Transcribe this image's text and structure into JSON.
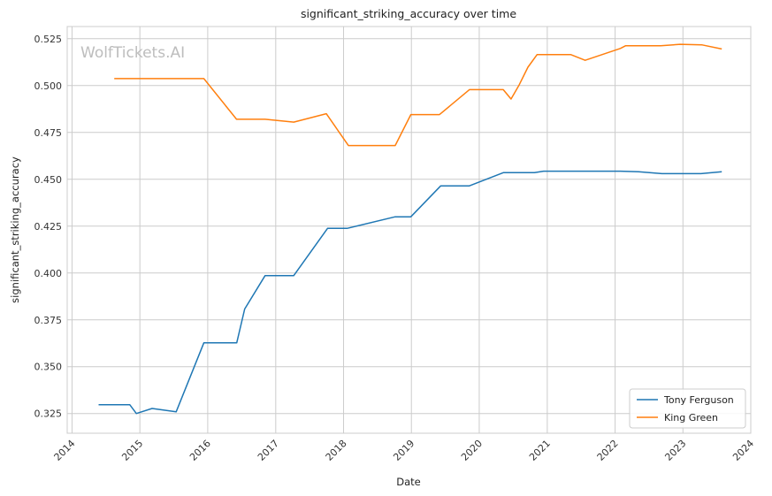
{
  "watermark": "WolfTickets.AI",
  "chart_data": {
    "type": "line",
    "title": "significant_striking_accuracy over time",
    "xlabel": "Date",
    "ylabel": "significant_striking_accuracy",
    "xlim": [
      "2013-12-06",
      "2024-01-01"
    ],
    "ylim": [
      0.3145,
      0.5315
    ],
    "x_ticks": [
      "2014",
      "2015",
      "2016",
      "2017",
      "2018",
      "2019",
      "2020",
      "2021",
      "2022",
      "2023",
      "2024"
    ],
    "y_ticks": [
      "0.325",
      "0.350",
      "0.375",
      "0.400",
      "0.425",
      "0.450",
      "0.475",
      "0.500",
      "0.525"
    ],
    "grid": true,
    "legend_position": "lower-right",
    "series": [
      {
        "name": "Tony Ferguson",
        "color": "#1f77b4",
        "points": [
          [
            "2014-05-24",
            0.3297
          ],
          [
            "2014-11-08",
            0.3297
          ],
          [
            "2014-12-13",
            0.325
          ],
          [
            "2015-03-08",
            0.3277
          ],
          [
            "2015-07-15",
            0.3259
          ],
          [
            "2015-12-11",
            0.3627
          ],
          [
            "2016-06-05",
            0.3627
          ],
          [
            "2016-07-18",
            0.3808
          ],
          [
            "2016-11-05",
            0.3986
          ],
          [
            "2017-04-08",
            0.3986
          ],
          [
            "2017-10-07",
            0.4238
          ],
          [
            "2018-01-20",
            0.4238
          ],
          [
            "2018-10-06",
            0.43
          ],
          [
            "2018-12-29",
            0.43
          ],
          [
            "2019-06-08",
            0.4465
          ],
          [
            "2019-11-09",
            0.4465
          ],
          [
            "2020-05-09",
            0.4535
          ],
          [
            "2020-10-24",
            0.4535
          ],
          [
            "2020-12-12",
            0.4543
          ],
          [
            "2022-01-29",
            0.4543
          ],
          [
            "2022-05-07",
            0.454
          ],
          [
            "2022-09-10",
            0.453
          ],
          [
            "2023-04-08",
            0.453
          ],
          [
            "2023-07-29",
            0.454
          ]
        ]
      },
      {
        "name": "King Green",
        "color": "#ff7f0e",
        "points": [
          [
            "2014-08-16",
            0.5037
          ],
          [
            "2015-12-11",
            0.5037
          ],
          [
            "2016-06-04",
            0.482
          ],
          [
            "2016-11-05",
            0.482
          ],
          [
            "2017-04-08",
            0.4805
          ],
          [
            "2017-09-30",
            0.485
          ],
          [
            "2018-01-27",
            0.468
          ],
          [
            "2018-10-06",
            0.468
          ],
          [
            "2018-12-29",
            0.4845
          ],
          [
            "2019-06-01",
            0.4845
          ],
          [
            "2019-11-09",
            0.4978
          ],
          [
            "2020-05-09",
            0.4978
          ],
          [
            "2020-06-20",
            0.4928
          ],
          [
            "2020-08-01",
            0.5
          ],
          [
            "2020-09-19",
            0.5098
          ],
          [
            "2020-11-07",
            0.5165
          ],
          [
            "2021-05-08",
            0.5165
          ],
          [
            "2021-07-24",
            0.5135
          ],
          [
            "2022-01-29",
            0.5198
          ],
          [
            "2022-02-26",
            0.5212
          ],
          [
            "2022-09-03",
            0.5212
          ],
          [
            "2022-12-17",
            0.522
          ],
          [
            "2023-04-15",
            0.5217
          ],
          [
            "2023-07-29",
            0.5195
          ]
        ]
      }
    ]
  }
}
